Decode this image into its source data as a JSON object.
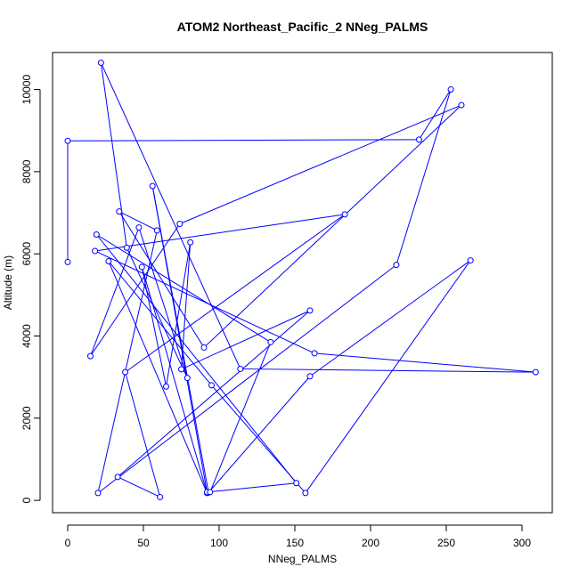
{
  "chart_data": {
    "type": "line",
    "title": "ATOM2 Northeast_Pacific_2 NNeg_PALMS",
    "xlabel": "NNeg_PALMS",
    "ylabel": "Altitude (m)",
    "xlim": [
      -10,
      320
    ],
    "ylim": [
      -300,
      10900
    ],
    "x_ticks": [
      0,
      50,
      100,
      150,
      200,
      250,
      300
    ],
    "y_ticks": [
      0,
      2000,
      4000,
      6000,
      8000,
      10000
    ],
    "x_tick_labels": [
      "0",
      "50",
      "100",
      "150",
      "200",
      "250",
      "300"
    ],
    "y_tick_labels": [
      "0",
      "2000",
      "4000",
      "6000",
      "8000",
      "10000"
    ],
    "grid": false,
    "legend": "none",
    "marker": "open-circle",
    "color": "#0000ff",
    "series": [
      {
        "points": [
          [
            0,
            5800
          ],
          [
            0,
            8750
          ],
          [
            232,
            8780
          ],
          [
            253,
            10000
          ],
          [
            217,
            5730
          ],
          [
            20,
            180
          ],
          [
            59,
            6570
          ],
          [
            34,
            7030
          ],
          [
            90,
            3720
          ],
          [
            260,
            9620
          ],
          [
            74,
            6730
          ],
          [
            15,
            3510
          ],
          [
            47,
            6640
          ],
          [
            79,
            2980
          ],
          [
            39,
            6150
          ],
          [
            22,
            10650
          ],
          [
            114,
            3200
          ],
          [
            309,
            3120
          ],
          [
            163,
            3580
          ],
          [
            18,
            6070
          ],
          [
            183,
            6960
          ],
          [
            38,
            3120
          ],
          [
            61,
            80
          ],
          [
            33,
            570
          ],
          [
            160,
            4620
          ],
          [
            75,
            3190
          ],
          [
            81,
            6280
          ],
          [
            65,
            2770
          ],
          [
            49,
            5680
          ],
          [
            92,
            180
          ],
          [
            27,
            5820
          ],
          [
            95,
            2800
          ],
          [
            157,
            180
          ],
          [
            266,
            5840
          ],
          [
            160,
            3020
          ],
          [
            93,
            190
          ],
          [
            56,
            7650
          ],
          [
            92,
            200
          ],
          [
            151,
            420
          ],
          [
            19,
            6470
          ],
          [
            134,
            3850
          ],
          [
            94,
            200
          ]
        ]
      }
    ]
  }
}
